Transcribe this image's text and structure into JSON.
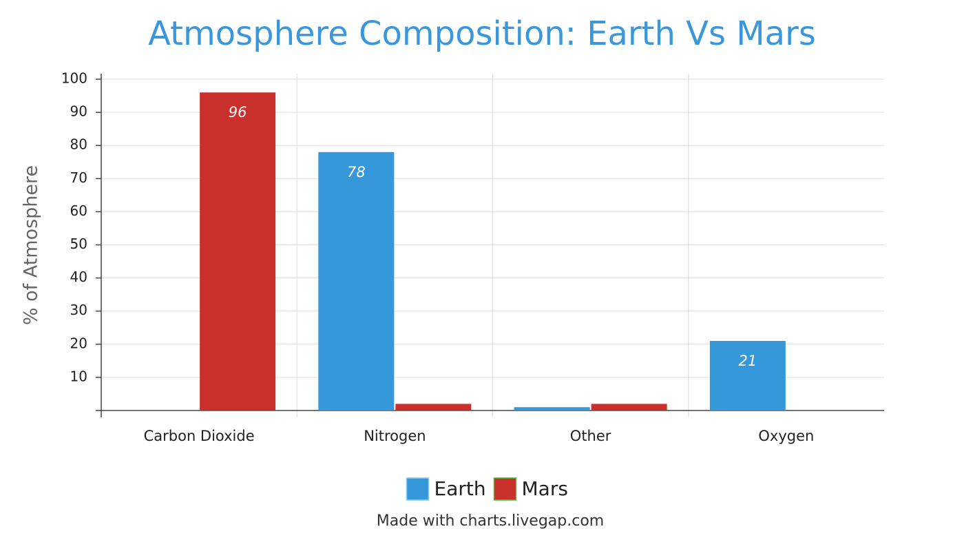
{
  "chart_data": {
    "type": "bar",
    "title": "Atmosphere Composition: Earth Vs Mars",
    "y_label": "% of Atmosphere",
    "footer": "Made with charts.livegap.com",
    "categories": [
      "Carbon Dioxide",
      "Nitrogen",
      "Other",
      "Oxygen"
    ],
    "series": [
      {
        "name": "Earth",
        "color": "#3498db",
        "values": [
          0,
          78,
          1,
          21
        ]
      },
      {
        "name": "Mars",
        "color": "#c9302c",
        "values": [
          96,
          2,
          2,
          0
        ]
      }
    ],
    "ylim": [
      0,
      100
    ],
    "yticks": [
      10,
      20,
      30,
      40,
      50,
      60,
      70,
      80,
      90,
      100
    ],
    "grid": true,
    "legend": "bottom"
  }
}
